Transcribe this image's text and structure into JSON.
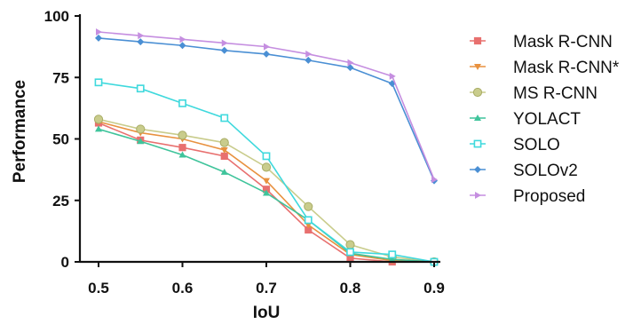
{
  "chart_data": {
    "type": "line",
    "xlabel": "IoU",
    "ylabel": "Performance",
    "x": [
      0.5,
      0.55,
      0.6,
      0.65,
      0.7,
      0.75,
      0.8,
      0.85,
      0.9
    ],
    "xticks": [
      "0.5",
      "0.6",
      "0.7",
      "0.8",
      "0.9"
    ],
    "xtick_values": [
      0.5,
      0.6,
      0.7,
      0.8,
      0.9
    ],
    "yticks": [
      "0",
      "25",
      "50",
      "75",
      "100"
    ],
    "ytick_values": [
      0,
      25,
      50,
      75,
      100
    ],
    "xlim": [
      0.5,
      0.9
    ],
    "ylim": [
      0,
      100
    ],
    "grid": false,
    "legend_position": "right",
    "series": [
      {
        "name": "Mask R-CNN",
        "color": "#e8706f",
        "marker": "square-filled",
        "values": [
          56.5,
          49.5,
          46.5,
          43,
          29.5,
          13,
          1.5,
          0,
          0
        ]
      },
      {
        "name": "Mask R-CNN*",
        "color": "#e8913f",
        "marker": "triangle-down",
        "values": [
          57,
          52.5,
          50,
          45.5,
          33,
          15,
          3,
          0.5,
          0
        ]
      },
      {
        "name": "MS R-CNN",
        "color": "#c9cc8c",
        "marker": "circle",
        "values": [
          58,
          54,
          51.5,
          48.5,
          38.5,
          22.5,
          7,
          2,
          0
        ]
      },
      {
        "name": "YOLACT",
        "color": "#3fc49b",
        "marker": "triangle-up",
        "values": [
          54,
          49,
          43.5,
          36.5,
          28,
          17,
          3.5,
          1,
          0
        ]
      },
      {
        "name": "SOLO",
        "color": "#3fd9dd",
        "marker": "square-open",
        "values": [
          73,
          70.5,
          64.5,
          58.5,
          43,
          17,
          4,
          3,
          0
        ]
      },
      {
        "name": "SOLOv2",
        "color": "#4a8fd4",
        "marker": "diamond",
        "values": [
          91,
          89.5,
          88,
          86,
          84.5,
          82,
          79,
          72.5,
          33
        ]
      },
      {
        "name": "Proposed",
        "color": "#c58ee0",
        "marker": "triangle-right",
        "values": [
          93.5,
          92,
          90.5,
          89,
          87.5,
          84.5,
          81,
          75.5,
          33.5
        ]
      }
    ]
  }
}
